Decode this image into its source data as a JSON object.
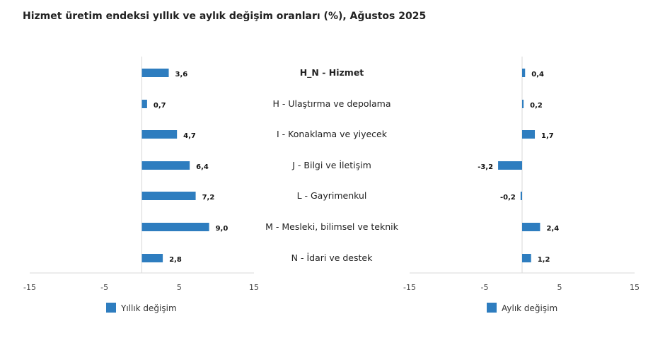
{
  "title": "Hizmet üretim endeksi yıllık ve aylık değişim oranları (%), Ağustos 2025",
  "chart_data": [
    {
      "type": "bar",
      "orientation": "horizontal",
      "legend": "Yıllık değişim",
      "xlim": [
        -15,
        15
      ],
      "ticks": [
        "-15",
        "-5",
        "5",
        "15"
      ],
      "tick_values": [
        -15,
        -5,
        5,
        15
      ],
      "categories": [
        "H_N - Hizmet",
        "H - Ulaştırma ve depolama",
        "I - Konaklama ve yiyecek",
        "J - Bilgi ve İletişim",
        "L - Gayrimenkul",
        "M - Mesleki, bilimsel ve teknik",
        "N - İdari ve destek"
      ],
      "values": [
        3.6,
        0.7,
        4.7,
        6.4,
        7.2,
        9.0,
        2.8
      ],
      "labels": [
        "3,6",
        "0,7",
        "4,7",
        "6,4",
        "7,2",
        "9,0",
        "2,8"
      ],
      "color": "#2e7dbf",
      "legend_placement": "bottom"
    },
    {
      "type": "bar",
      "orientation": "horizontal",
      "legend": "Aylık değişim",
      "xlim": [
        -15,
        15
      ],
      "ticks": [
        "-15",
        "-5",
        "5",
        "15"
      ],
      "tick_values": [
        -15,
        -5,
        5,
        15
      ],
      "values": [
        0.4,
        0.2,
        1.7,
        -3.2,
        -0.2,
        2.4,
        1.2
      ],
      "labels": [
        "0,4",
        "0,2",
        "1,7",
        "-3,2",
        "-0,2",
        "2,4",
        "1,2"
      ],
      "color": "#2e7dbf",
      "legend_placement": "bottom"
    }
  ]
}
